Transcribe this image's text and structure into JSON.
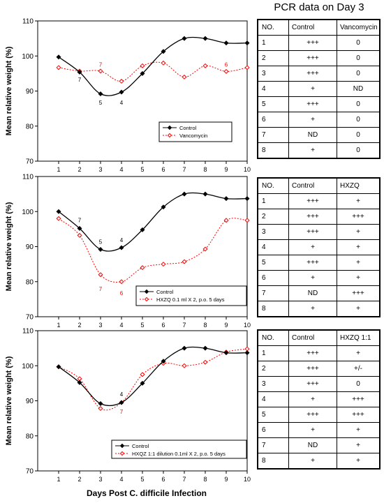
{
  "chart_data": [
    {
      "type": "line",
      "xlabel": "Days Post C. difficile Infection",
      "ylabel": "Mean relative weight (%)",
      "ylim": [
        70,
        110
      ],
      "xlim": [
        0,
        10
      ],
      "yticks": [
        70,
        80,
        90,
        100,
        110
      ],
      "xticks": [
        1,
        2,
        3,
        4,
        5,
        6,
        7,
        8,
        9,
        10
      ],
      "x": [
        1,
        2,
        3,
        4,
        5,
        6,
        7,
        8,
        9,
        10
      ],
      "series": [
        {
          "name": "Control",
          "color": "#000000",
          "values": [
            99.7,
            95.4,
            89.2,
            89.7,
            95.0,
            101.3,
            105.0,
            105.0,
            103.7,
            103.7
          ]
        },
        {
          "name": "Vancomycin",
          "color": "#ff0000",
          "values": [
            96.7,
            95.7,
            95.7,
            92.8,
            97.2,
            98.0,
            94.0,
            97.2,
            95.6,
            96.7
          ]
        }
      ],
      "annotations": [
        {
          "text": "7",
          "x": 2,
          "y": 93.3,
          "color": "#000000"
        },
        {
          "text": "5",
          "x": 3,
          "y": 86.7,
          "color": "#000000"
        },
        {
          "text": "4",
          "x": 4,
          "y": 86.7,
          "color": "#000000"
        },
        {
          "text": "7",
          "x": 3,
          "y": 97.6,
          "color": "#ff0000"
        },
        {
          "text": "6",
          "x": 9,
          "y": 97.6,
          "color": "#ff0000"
        }
      ],
      "legend": "bottom-right"
    },
    {
      "type": "line",
      "xlabel": "Days Post C. difficile Infection",
      "ylabel": "Mean relative weight (%)",
      "ylim": [
        70,
        110
      ],
      "xlim": [
        0,
        10
      ],
      "yticks": [
        70,
        80,
        90,
        100,
        110
      ],
      "xticks": [
        1,
        2,
        3,
        4,
        5,
        6,
        7,
        8,
        9,
        10
      ],
      "x": [
        1,
        2,
        3,
        4,
        5,
        6,
        7,
        8,
        9,
        10
      ],
      "series": [
        {
          "name": "Control",
          "color": "#000000",
          "values": [
            100.0,
            95.2,
            89.2,
            89.7,
            94.8,
            101.3,
            105.0,
            105.0,
            103.7,
            103.7
          ]
        },
        {
          "name": "HXZQ 0.1 ml X 2, p.o. 5 days",
          "color": "#ff0000",
          "values": [
            98.0,
            93.2,
            82.0,
            80.0,
            84.0,
            85.0,
            85.7,
            89.3,
            97.5,
            97.5
          ]
        }
      ],
      "annotations": [
        {
          "text": "7",
          "x": 2,
          "y": 97.6,
          "color": "#000000"
        },
        {
          "text": "5",
          "x": 3,
          "y": 91.4,
          "color": "#000000"
        },
        {
          "text": "4",
          "x": 4,
          "y": 91.9,
          "color": "#000000"
        },
        {
          "text": "7",
          "x": 3,
          "y": 78.0,
          "color": "#ff0000"
        },
        {
          "text": "6",
          "x": 4,
          "y": 76.8,
          "color": "#ff0000"
        }
      ],
      "legend": "bottom-right"
    },
    {
      "type": "line",
      "xlabel": "Days Post C. difficile Infection",
      "ylabel": "Mean relative weight (%)",
      "ylim": [
        70,
        110
      ],
      "xlim": [
        0,
        10
      ],
      "yticks": [
        70,
        80,
        90,
        100,
        110
      ],
      "xticks": [
        1,
        2,
        3,
        4,
        5,
        6,
        7,
        8,
        9,
        10
      ],
      "x": [
        1,
        2,
        3,
        4,
        5,
        6,
        7,
        8,
        9,
        10
      ],
      "series": [
        {
          "name": "Control",
          "color": "#000000",
          "values": [
            99.7,
            95.2,
            89.2,
            89.5,
            95.0,
            101.3,
            105.0,
            105.0,
            103.7,
            103.7
          ]
        },
        {
          "name": "HXQZ 1:1 dilution 0.1ml X 2, p.o. 5 days",
          "color": "#ff0000",
          "values": [
            99.7,
            96.3,
            87.8,
            89.5,
            97.5,
            100.7,
            100.0,
            101.0,
            103.9,
            104.8
          ]
        }
      ],
      "annotations": [
        {
          "text": "4",
          "x": 4,
          "y": 91.9,
          "color": "#000000"
        },
        {
          "text": "7",
          "x": 4,
          "y": 86.9,
          "color": "#ff0000"
        }
      ],
      "legend": "bottom-right"
    }
  ],
  "pcr": {
    "title": "PCR data on Day 3",
    "tables": [
      {
        "headers": [
          "NO.",
          "Control",
          "Vancomycin"
        ],
        "rows": [
          [
            "1",
            "+++",
            "0"
          ],
          [
            "2",
            "+++",
            "0"
          ],
          [
            "3",
            "+++",
            "0"
          ],
          [
            "4",
            "+",
            "ND"
          ],
          [
            "5",
            "+++",
            "0"
          ],
          [
            "6",
            "+",
            "0"
          ],
          [
            "7",
            "ND",
            "0"
          ],
          [
            "8",
            "+",
            "0"
          ]
        ]
      },
      {
        "headers": [
          "NO.",
          "Control",
          "HXZQ"
        ],
        "rows": [
          [
            "1",
            "+++",
            "+"
          ],
          [
            "2",
            "+++",
            "+++"
          ],
          [
            "3",
            "+++",
            "+"
          ],
          [
            "4",
            "+",
            "+"
          ],
          [
            "5",
            "+++",
            "+"
          ],
          [
            "6",
            "+",
            "+"
          ],
          [
            "7",
            "ND",
            "+++"
          ],
          [
            "8",
            "+",
            "+"
          ]
        ]
      },
      {
        "headers": [
          "NO.",
          "Control",
          "HXZQ 1:1"
        ],
        "rows": [
          [
            "1",
            "+++",
            "+"
          ],
          [
            "2",
            "+++",
            "+/-"
          ],
          [
            "3",
            "+++",
            "0"
          ],
          [
            "4",
            "+",
            "+++"
          ],
          [
            "5",
            "+++",
            "+++"
          ],
          [
            "6",
            "+",
            "+"
          ],
          [
            "7",
            "ND",
            "+"
          ],
          [
            "8",
            "+",
            "+"
          ]
        ]
      }
    ]
  },
  "colors": {
    "control": "#000000",
    "treatment": "#ff0000"
  }
}
